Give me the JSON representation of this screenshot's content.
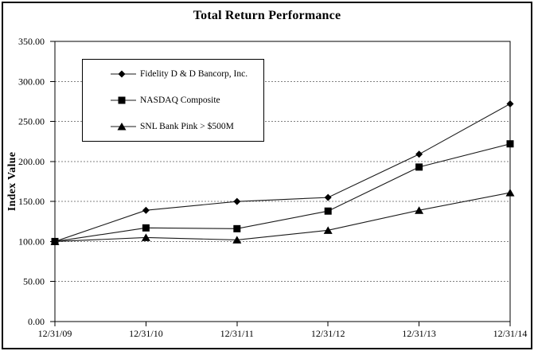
{
  "chart": {
    "title": "Total Return Performance",
    "y_axis_title": "Index Value"
  },
  "chart_data": {
    "type": "line",
    "title": "Total Return Performance",
    "xlabel": "",
    "ylabel": "Index Value",
    "categories": [
      "12/31/09",
      "12/31/10",
      "12/31/11",
      "12/31/12",
      "12/31/13",
      "12/31/14"
    ],
    "series": [
      {
        "name": "Fidelity D & D Bancorp, Inc.",
        "marker": "diamond",
        "values": [
          100.0,
          139.0,
          150.0,
          155.0,
          209.0,
          272.0
        ]
      },
      {
        "name": "NASDAQ Composite",
        "marker": "square",
        "values": [
          100.0,
          117.0,
          116.0,
          138.0,
          193.0,
          222.0
        ]
      },
      {
        "name": "SNL Bank Pink > $500M",
        "marker": "triangle",
        "values": [
          100.0,
          105.0,
          102.0,
          114.0,
          139.0,
          161.0
        ]
      }
    ],
    "ylim": [
      0,
      350
    ],
    "ytick_step": 50,
    "ytick_decimals": 2,
    "grid": "horizontal-dashed",
    "legend_position": "upper-left-inside",
    "colors": {
      "line": "#1a1a1a",
      "marker": "#000000",
      "grid": "#808080",
      "axis": "#000000",
      "text": "#000000",
      "background": "#ffffff"
    }
  }
}
